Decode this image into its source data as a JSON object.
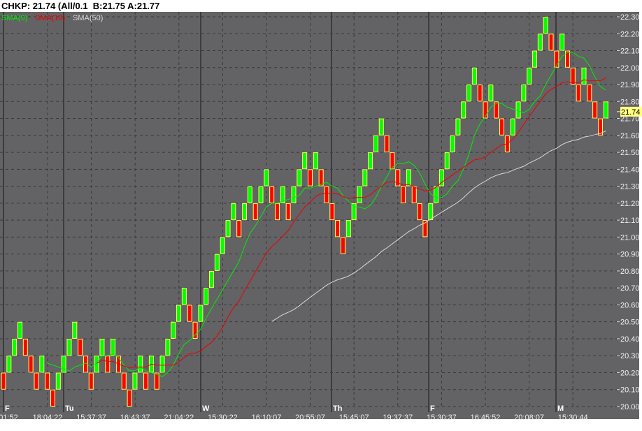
{
  "header": {
    "title": "CHKP: 21.74 (All/0.1  B:21.75 A:21.77"
  },
  "colors": {
    "background": "#636265",
    "up": "#00ff00",
    "down": "#ff0000",
    "brick_border": "#ffff66",
    "sma9": "#00ee00",
    "sma18": "#ee0000",
    "sma50": "#d8d8d8",
    "last_price_bg": "#ffff80"
  },
  "chart_data": {
    "type": "renko",
    "symbol": "CHKP",
    "brick_size": 0.1,
    "last_price": "21.74",
    "legend": [
      {
        "name": "SMA(9)",
        "period": 9,
        "color": "#00ee00"
      },
      {
        "name": "SMA(18)",
        "period": 18,
        "color": "#ee0000"
      },
      {
        "name": "SMA(50)",
        "period": 50,
        "color": "#d8d8d8"
      }
    ],
    "legend_placement": "top-left",
    "ylim": [
      20.0,
      22.3
    ],
    "y_ticks": [
      "22.30",
      "22.20",
      "22.10",
      "22.00",
      "21.90",
      "21.80",
      "21.70",
      "21.60",
      "21.50",
      "21.40",
      "21.30",
      "21.20",
      "21.10",
      "21.00",
      "20.90",
      "20.80",
      "20.70",
      "20.60",
      "20.50",
      "20.40",
      "20.30",
      "20.20",
      "20.10",
      "20.00"
    ],
    "day_markers": [
      {
        "label": "F",
        "brick": 0
      },
      {
        "label": "Tu",
        "brick": 11
      },
      {
        "label": "W",
        "brick": 36
      },
      {
        "label": "Th",
        "brick": 60
      },
      {
        "label": "F",
        "brick": 78
      },
      {
        "label": "M",
        "brick": 101
      }
    ],
    "time_labels": [
      "01:52",
      "18:04:22",
      "15:37:37",
      "16:43:37",
      "21:04:22",
      "15:30:22",
      "16:10:07",
      "20:55:07",
      "15:45:07",
      "19:37:37",
      "15:30:37",
      "16:45:52",
      "20:08:07",
      "15:30:44"
    ],
    "brick_lows": [
      20.1,
      20.2,
      20.3,
      20.4,
      20.3,
      20.2,
      20.1,
      20.2,
      20.1,
      20.0,
      20.1,
      20.2,
      20.3,
      20.4,
      20.3,
      20.2,
      20.1,
      20.2,
      20.3,
      20.2,
      20.3,
      20.2,
      20.1,
      20.0,
      20.1,
      20.2,
      20.1,
      20.2,
      20.1,
      20.2,
      20.3,
      20.4,
      20.5,
      20.6,
      20.5,
      20.4,
      20.5,
      20.6,
      20.7,
      20.8,
      20.9,
      21.0,
      21.1,
      21.0,
      21.1,
      21.2,
      21.1,
      21.2,
      21.3,
      21.2,
      21.1,
      21.2,
      21.1,
      21.2,
      21.3,
      21.4,
      21.3,
      21.4,
      21.3,
      21.2,
      21.1,
      21.0,
      20.9,
      21.0,
      21.1,
      21.2,
      21.3,
      21.4,
      21.5,
      21.6,
      21.5,
      21.4,
      21.3,
      21.2,
      21.3,
      21.2,
      21.1,
      21.0,
      21.1,
      21.2,
      21.3,
      21.4,
      21.5,
      21.6,
      21.7,
      21.8,
      21.9,
      21.8,
      21.7,
      21.8,
      21.7,
      21.6,
      21.5,
      21.6,
      21.7,
      21.8,
      21.9,
      22.0,
      22.1,
      22.2,
      22.1,
      22.0,
      22.1,
      22.0,
      21.9,
      21.8,
      21.9,
      21.8,
      21.7,
      21.6,
      21.7
    ],
    "brick_dirs": [
      "D",
      "U",
      "U",
      "U",
      "D",
      "D",
      "D",
      "U",
      "D",
      "D",
      "U",
      "U",
      "U",
      "U",
      "D",
      "D",
      "D",
      "U",
      "U",
      "D",
      "U",
      "D",
      "D",
      "D",
      "U",
      "U",
      "D",
      "U",
      "D",
      "U",
      "U",
      "U",
      "U",
      "U",
      "D",
      "D",
      "U",
      "U",
      "U",
      "U",
      "U",
      "U",
      "U",
      "D",
      "U",
      "U",
      "D",
      "U",
      "U",
      "D",
      "D",
      "U",
      "D",
      "U",
      "U",
      "U",
      "D",
      "U",
      "D",
      "D",
      "D",
      "D",
      "D",
      "U",
      "U",
      "U",
      "U",
      "U",
      "U",
      "U",
      "D",
      "D",
      "D",
      "D",
      "U",
      "D",
      "D",
      "D",
      "U",
      "U",
      "U",
      "U",
      "U",
      "U",
      "U",
      "U",
      "U",
      "D",
      "D",
      "U",
      "D",
      "D",
      "D",
      "U",
      "U",
      "U",
      "U",
      "U",
      "U",
      "U",
      "D",
      "D",
      "U",
      "D",
      "D",
      "D",
      "U",
      "D",
      "D",
      "D",
      "U"
    ]
  }
}
